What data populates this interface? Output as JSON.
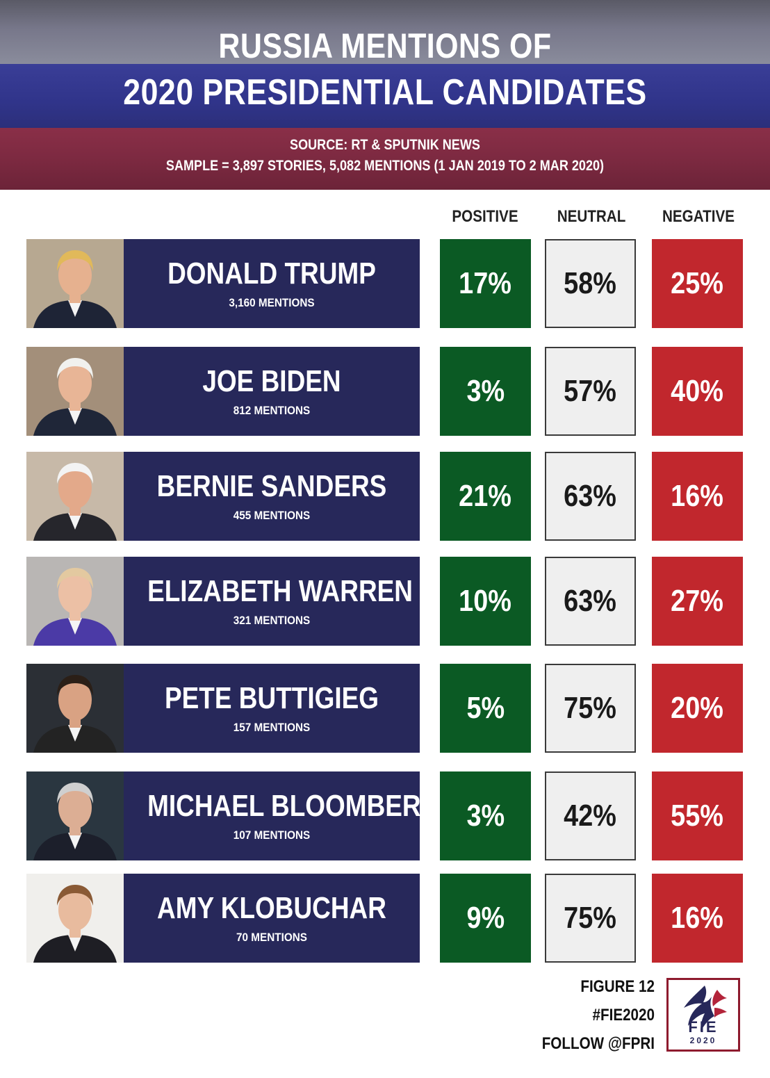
{
  "header": {
    "title_line1": "RUSSIA MENTIONS OF",
    "title_line2": "2020 PRESIDENTIAL CANDIDATES",
    "source": "SOURCE: RT & SPUTNIK NEWS",
    "sample": "SAMPLE = 3,897 STORIES, 5,082 MENTIONS (1 JAN 2019 TO 2 MAR 2020)"
  },
  "chart_data": {
    "type": "table",
    "columns": [
      "POSITIVE",
      "NEUTRAL",
      "NEGATIVE"
    ],
    "rows": [
      {
        "name": "DONALD TRUMP",
        "mentions": "3,160 MENTIONS",
        "positive": "17%",
        "neutral": "58%",
        "negative": "25%"
      },
      {
        "name": "JOE BIDEN",
        "mentions": "812 MENTIONS",
        "positive": "3%",
        "neutral": "57%",
        "negative": "40%"
      },
      {
        "name": "BERNIE SANDERS",
        "mentions": "455 MENTIONS",
        "positive": "21%",
        "neutral": "63%",
        "negative": "16%"
      },
      {
        "name": "ELIZABETH WARREN",
        "mentions": "321 MENTIONS",
        "positive": "10%",
        "neutral": "63%",
        "negative": "27%"
      },
      {
        "name": "PETE BUTTIGIEG",
        "mentions": "157 MENTIONS",
        "positive": "5%",
        "neutral": "75%",
        "negative": "20%"
      },
      {
        "name": "MICHAEL BLOOMBERG",
        "mentions": "107 MENTIONS",
        "positive": "3%",
        "neutral": "42%",
        "negative": "55%"
      },
      {
        "name": "AMY KLOBUCHAR",
        "mentions": "70 MENTIONS",
        "positive": "9%",
        "neutral": "75%",
        "negative": "16%"
      }
    ],
    "colors": {
      "positive": "#0b5a24",
      "neutral": "#efefef",
      "negative": "#c1272d",
      "name_box": "#27285a"
    }
  },
  "footer": {
    "figure": "FIGURE 12",
    "hashtag": "#FIE2020",
    "follow": "FOLLOW @FPRI",
    "logo_text": "FIE",
    "logo_year": "2020"
  }
}
